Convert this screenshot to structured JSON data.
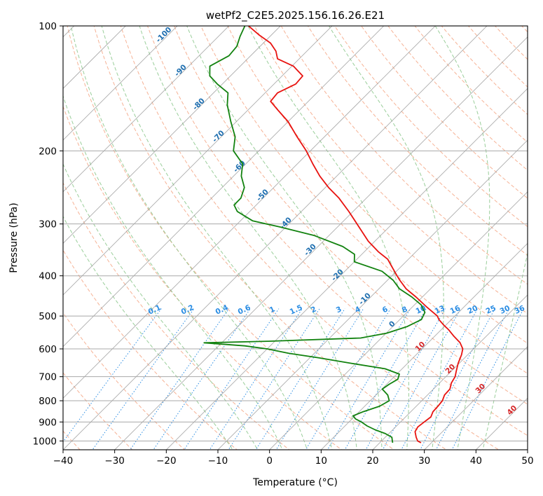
{
  "chart_data": {
    "type": "line",
    "title": "wetPf2_C2E5.2025.156.16.26.E21",
    "xlabel": "Temperature (°C)",
    "ylabel": "Pressure (hPa)",
    "xlim": [
      -40,
      50
    ],
    "ylim": [
      1050,
      100
    ],
    "y_scale": "log",
    "skew": true,
    "grid": true,
    "x_ticks": [
      -40,
      -30,
      -20,
      -10,
      0,
      10,
      20,
      30,
      40,
      50
    ],
    "y_ticks": [
      100,
      200,
      300,
      400,
      500,
      600,
      700,
      800,
      900,
      1000
    ],
    "series": [
      {
        "color": "#e8120f",
        "points": [
          {
            "p": 1010,
            "t": 28.0
          },
          {
            "p": 1000,
            "t": 27.0
          },
          {
            "p": 980,
            "t": 26.0
          },
          {
            "p": 950,
            "t": 24.7
          },
          {
            "p": 925,
            "t": 24.3
          },
          {
            "p": 900,
            "t": 24.6
          },
          {
            "p": 875,
            "t": 24.9
          },
          {
            "p": 850,
            "t": 24.3
          },
          {
            "p": 825,
            "t": 24.2
          },
          {
            "p": 800,
            "t": 24.0
          },
          {
            "p": 775,
            "t": 23.3
          },
          {
            "p": 750,
            "t": 23.2
          },
          {
            "p": 725,
            "t": 22.3
          },
          {
            "p": 700,
            "t": 21.8
          },
          {
            "p": 680,
            "t": 21.0
          },
          {
            "p": 650,
            "t": 19.8
          },
          {
            "p": 620,
            "t": 18.8
          },
          {
            "p": 600,
            "t": 17.9
          },
          {
            "p": 580,
            "t": 16.2
          },
          {
            "p": 560,
            "t": 13.8
          },
          {
            "p": 540,
            "t": 11.5
          },
          {
            "p": 525,
            "t": 9.5
          },
          {
            "p": 510,
            "t": 7.6
          },
          {
            "p": 500,
            "t": 6.6
          },
          {
            "p": 475,
            "t": 2.7
          },
          {
            "p": 450,
            "t": -1.2
          },
          {
            "p": 430,
            "t": -4.7
          },
          {
            "p": 410,
            "t": -7.6
          },
          {
            "p": 400,
            "t": -9.0
          },
          {
            "p": 380,
            "t": -11.8
          },
          {
            "p": 365,
            "t": -14.0
          },
          {
            "p": 350,
            "t": -17.3
          },
          {
            "p": 330,
            "t": -21.3
          },
          {
            "p": 300,
            "t": -26.8
          },
          {
            "p": 280,
            "t": -30.8
          },
          {
            "p": 260,
            "t": -35.3
          },
          {
            "p": 245,
            "t": -39.4
          },
          {
            "p": 230,
            "t": -43.3
          },
          {
            "p": 215,
            "t": -47.0
          },
          {
            "p": 200,
            "t": -50.8
          },
          {
            "p": 185,
            "t": -55.3
          },
          {
            "p": 170,
            "t": -60.0
          },
          {
            "p": 160,
            "t": -64.0
          },
          {
            "p": 152,
            "t": -67.3
          },
          {
            "p": 145,
            "t": -67.6
          },
          {
            "p": 138,
            "t": -65.8
          },
          {
            "p": 132,
            "t": -66.0
          },
          {
            "p": 125,
            "t": -69.7
          },
          {
            "p": 120,
            "t": -74.2
          },
          {
            "p": 115,
            "t": -76.0
          },
          {
            "p": 110,
            "t": -78.6
          },
          {
            "p": 105,
            "t": -82.5
          },
          {
            "p": 100,
            "t": -86.2
          }
        ]
      },
      {
        "color": "#12820f",
        "points": [
          {
            "p": 1010,
            "t": 22.5
          },
          {
            "p": 1000,
            "t": 22.1
          },
          {
            "p": 980,
            "t": 21.3
          },
          {
            "p": 960,
            "t": 19.3
          },
          {
            "p": 940,
            "t": 16.6
          },
          {
            "p": 920,
            "t": 14.3
          },
          {
            "p": 900,
            "t": 12.4
          },
          {
            "p": 885,
            "t": 10.7
          },
          {
            "p": 870,
            "t": 9.6
          },
          {
            "p": 850,
            "t": 10.8
          },
          {
            "p": 825,
            "t": 12.9
          },
          {
            "p": 800,
            "t": 13.7
          },
          {
            "p": 775,
            "t": 12.3
          },
          {
            "p": 750,
            "t": 10.1
          },
          {
            "p": 730,
            "t": 10.5
          },
          {
            "p": 710,
            "t": 11.2
          },
          {
            "p": 690,
            "t": 10.5
          },
          {
            "p": 670,
            "t": 6.7
          },
          {
            "p": 650,
            "t": -0.9
          },
          {
            "p": 630,
            "t": -8.4
          },
          {
            "p": 615,
            "t": -14.9
          },
          {
            "p": 600,
            "t": -20.0
          },
          {
            "p": 590,
            "t": -24.9
          },
          {
            "p": 580,
            "t": -33.4
          },
          {
            "p": 575,
            "t": -21.3
          },
          {
            "p": 565,
            "t": -4.0
          },
          {
            "p": 550,
            "t": 0.1
          },
          {
            "p": 530,
            "t": 2.8
          },
          {
            "p": 510,
            "t": 4.2
          },
          {
            "p": 490,
            "t": 3.5
          },
          {
            "p": 470,
            "t": 1.3
          },
          {
            "p": 450,
            "t": -2.0
          },
          {
            "p": 430,
            "t": -6.0
          },
          {
            "p": 410,
            "t": -8.9
          },
          {
            "p": 390,
            "t": -12.8
          },
          {
            "p": 370,
            "t": -20.0
          },
          {
            "p": 355,
            "t": -21.4
          },
          {
            "p": 340,
            "t": -25.2
          },
          {
            "p": 320,
            "t": -32.8
          },
          {
            "p": 305,
            "t": -41.2
          },
          {
            "p": 295,
            "t": -47.6
          },
          {
            "p": 280,
            "t": -52.4
          },
          {
            "p": 270,
            "t": -54.3
          },
          {
            "p": 260,
            "t": -54.3
          },
          {
            "p": 245,
            "t": -55.7
          },
          {
            "p": 230,
            "t": -58.5
          },
          {
            "p": 215,
            "t": -60.6
          },
          {
            "p": 200,
            "t": -64.9
          },
          {
            "p": 185,
            "t": -67.3
          },
          {
            "p": 170,
            "t": -71.1
          },
          {
            "p": 155,
            "t": -75.0
          },
          {
            "p": 145,
            "t": -77.2
          },
          {
            "p": 138,
            "t": -81.0
          },
          {
            "p": 132,
            "t": -84.0
          },
          {
            "p": 125,
            "t": -85.9
          },
          {
            "p": 118,
            "t": -84.2
          },
          {
            "p": 112,
            "t": -84.5
          },
          {
            "p": 106,
            "t": -85.8
          },
          {
            "p": 100,
            "t": -86.9
          }
        ]
      }
    ],
    "isotherm_labels": {
      "color": "#1f6fb0",
      "values": [
        -100,
        -90,
        -80,
        -70,
        -60,
        -50,
        -40,
        -30,
        -20,
        -10,
        0,
        10,
        20,
        30,
        40
      ]
    },
    "mixing_ratio_labels": {
      "color": "#2b8de3",
      "pressure": 500,
      "values": [
        "0.1",
        "0.2",
        "0.4",
        "0.6",
        "1",
        "1.5",
        "2",
        "3",
        "4",
        "6",
        "8",
        "10",
        "13",
        "16",
        "20",
        "25",
        "30",
        "36"
      ]
    },
    "colors": {
      "isotherm_label_cold": "#1f6fb0",
      "isotherm_label_warm": "#d62728",
      "dry_adiabat": "#f4a582",
      "moist_adiabat": "#8fc98f",
      "mixing_ratio": "#2b8de3",
      "isotherm": "#999999"
    }
  }
}
